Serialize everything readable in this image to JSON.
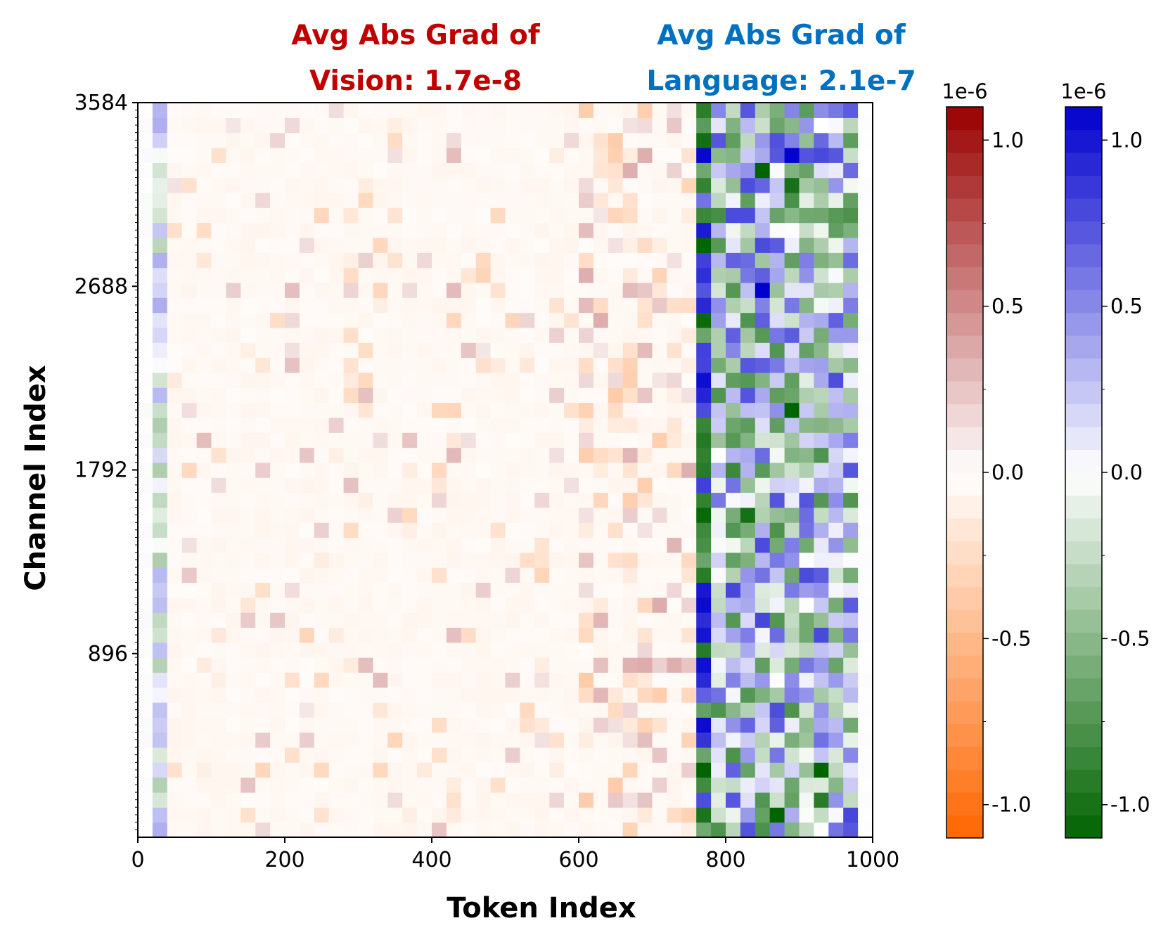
{
  "chart_data": {
    "type": "heatmap",
    "titles": [
      {
        "lines": [
          "Avg Abs Grad of",
          "Vision: 1.7e-8"
        ],
        "color": "#c00000"
      },
      {
        "lines": [
          "Avg Abs Grad of",
          "Language: 2.1e-7"
        ],
        "color": "#0070c0"
      }
    ],
    "xlabel": "Token Index",
    "ylabel": "Channel Index",
    "xlim": [
      0,
      1000
    ],
    "ylim": [
      0,
      3584
    ],
    "x_ticks": [
      "0",
      "200",
      "400",
      "600",
      "800",
      "1000"
    ],
    "y_ticks": [
      "896",
      "1792",
      "2688",
      "3584"
    ],
    "regions": [
      {
        "name": "Vision",
        "x_range": [
          0,
          760
        ]
      },
      {
        "name": "Language",
        "x_range": [
          760,
          1000
        ]
      }
    ],
    "colorbars": [
      {
        "scale_label": "1e-6",
        "ticks": [
          "1.0",
          "0.5",
          "0.0",
          "-0.5",
          "-1.0"
        ],
        "range": [
          -1.1,
          1.1
        ],
        "colors": [
          "#ff6600",
          "#ffffff",
          "#990000"
        ]
      },
      {
        "scale_label": "1e-6",
        "ticks": [
          "1.0",
          "0.5",
          "0.0",
          "-0.5",
          "-1.0"
        ],
        "range": [
          -1.1,
          1.1
        ],
        "colors": [
          "#006400",
          "#ffffff",
          "#0000cd"
        ]
      }
    ],
    "grid_cells": {
      "columns": 50,
      "rows": 49
    },
    "grid": false
  }
}
